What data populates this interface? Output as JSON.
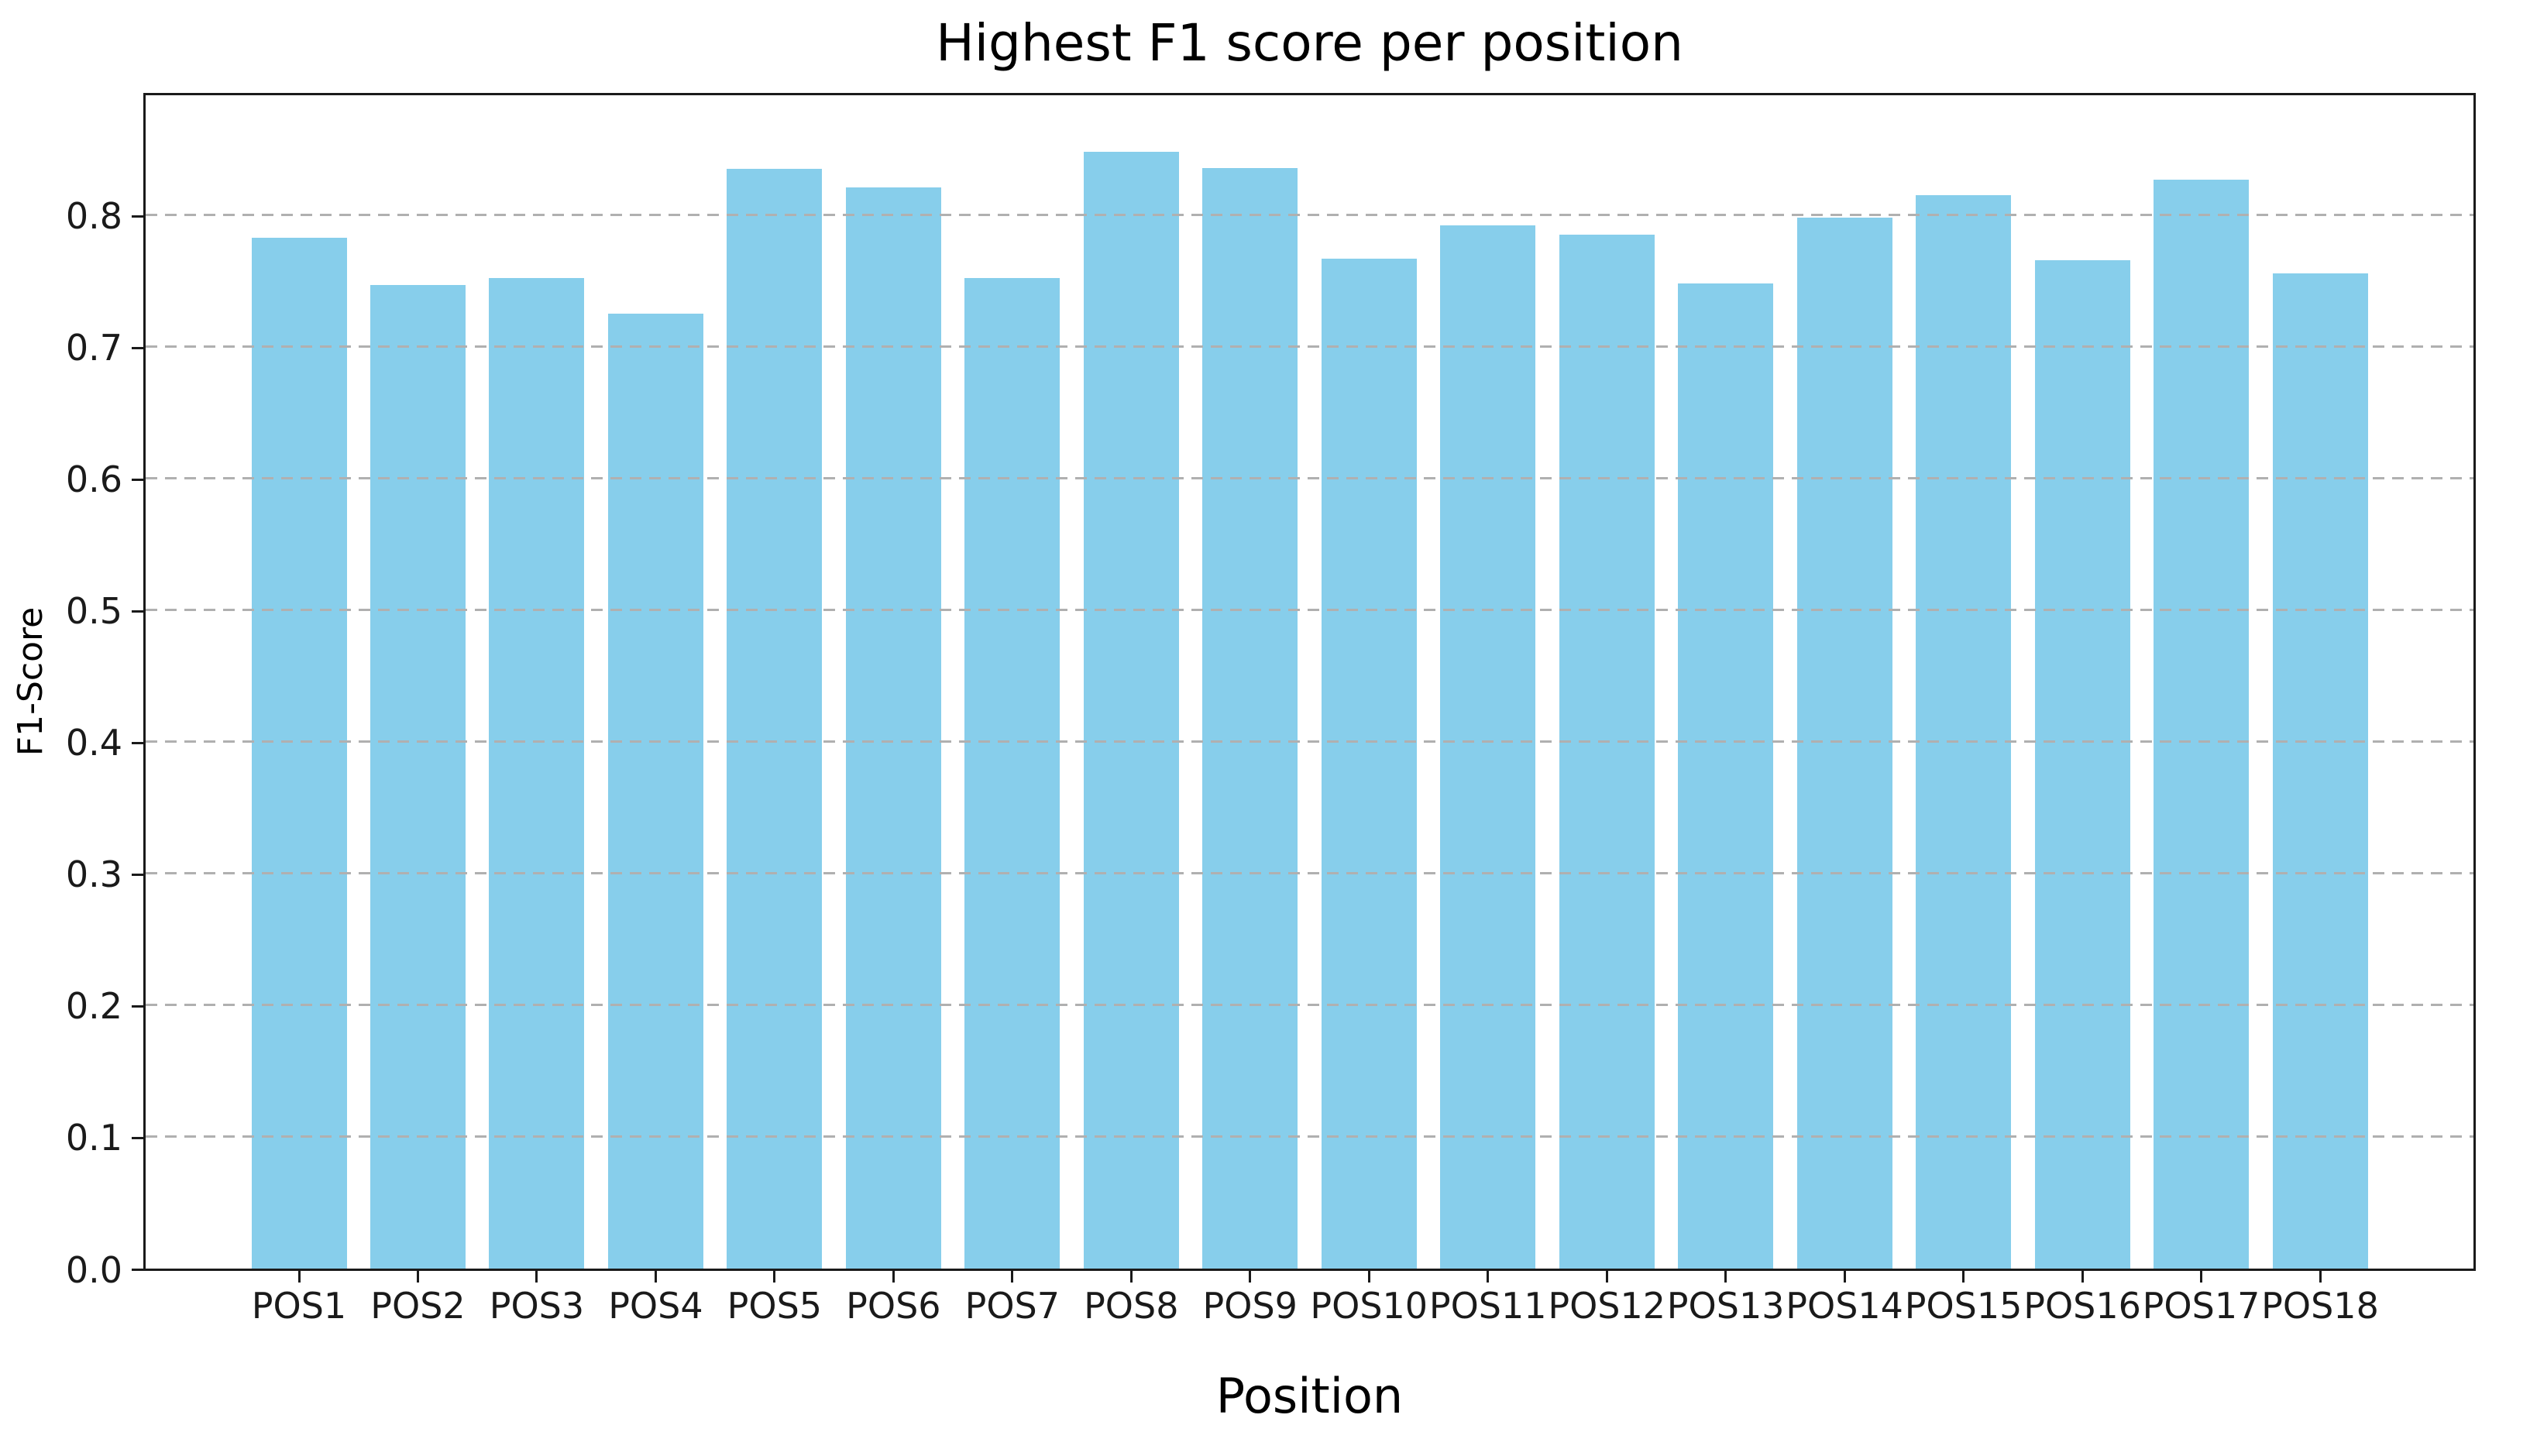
{
  "figure": {
    "background": "#ffffff"
  },
  "chart_data": {
    "type": "bar",
    "title": "Highest F1 score per position",
    "xlabel": "Position",
    "ylabel": "F1-Score",
    "categories": [
      "POS1",
      "POS2",
      "POS3",
      "POS4",
      "POS5",
      "POS6",
      "POS7",
      "POS8",
      "POS9",
      "POS10",
      "POS11",
      "POS12",
      "POS13",
      "POS14",
      "POS15",
      "POS16",
      "POS17",
      "POS18"
    ],
    "values": [
      0.783,
      0.747,
      0.752,
      0.725,
      0.835,
      0.821,
      0.752,
      0.848,
      0.836,
      0.767,
      0.792,
      0.785,
      0.748,
      0.798,
      0.815,
      0.766,
      0.827,
      0.756
    ],
    "yticks": [
      0.0,
      0.1,
      0.2,
      0.3,
      0.4,
      0.5,
      0.6,
      0.7,
      0.8
    ],
    "ytick_label_format": "one_decimal",
    "ylim": [
      0,
      0.891
    ],
    "grid": {
      "axis": "y",
      "style": "dashed",
      "color": "#b0b0b0",
      "drawn_above_bars": true
    },
    "legend_position": "none",
    "bar_color": "#87CEEB",
    "spine_color": "#1a1a1a",
    "text_color": "#000000"
  }
}
